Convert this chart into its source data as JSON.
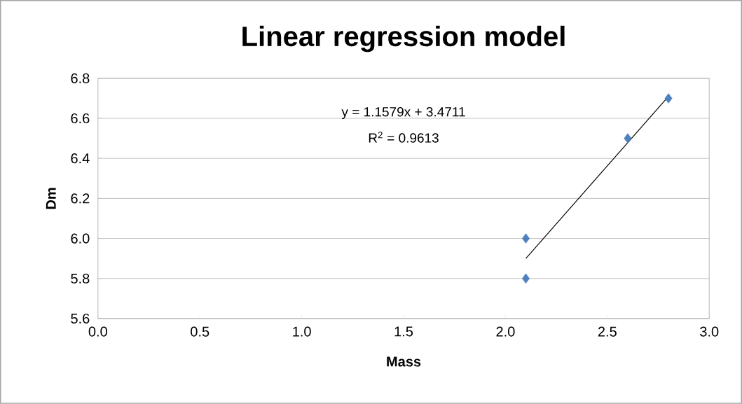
{
  "chart_data": {
    "type": "scatter",
    "title": "Linear regression model",
    "xlabel": "Mass",
    "ylabel": "Dm",
    "series": [
      {
        "color": "#4f81bd",
        "marker": "diamond",
        "x": [
          2.1,
          2.1,
          2.6,
          2.8
        ],
        "values": [
          6.0,
          5.8,
          6.5,
          6.7
        ]
      },
      {
        "type": "line",
        "color": "#000000",
        "marker": "none",
        "line_style": "solid",
        "x": [
          2.1,
          2.8
        ],
        "values": [
          5.9,
          6.71
        ]
      }
    ],
    "annotations": [
      "y = 1.1579x + 3.4711",
      "R$^{2}$ = 0.9613"
    ],
    "xlim": [
      0,
      3
    ],
    "xticks": [
      {
        "value": 0,
        "label": "0.0"
      },
      {
        "value": 0.5,
        "label": "0.5"
      },
      {
        "value": 1,
        "label": "1.0"
      },
      {
        "value": 1.5,
        "label": "1.5"
      },
      {
        "value": 2,
        "label": "2.0"
      },
      {
        "value": 2.5,
        "label": "2.5"
      },
      {
        "value": 3,
        "label": "3.0"
      }
    ],
    "ylim": [
      5.6,
      6.8
    ],
    "yticks": [
      {
        "value": 5.6,
        "label": "5.6"
      },
      {
        "value": 5.8,
        "label": "5.8"
      },
      {
        "value": 6.0,
        "label": "6.0"
      },
      {
        "value": 6.2,
        "label": "6.2"
      },
      {
        "value": 6.4,
        "label": "6.4"
      },
      {
        "value": 6.6,
        "label": "6.6"
      },
      {
        "value": 6.8,
        "label": "6.8"
      }
    ],
    "grid": "y"
  }
}
